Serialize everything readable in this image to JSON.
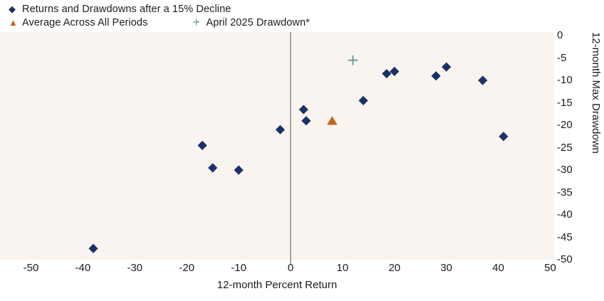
{
  "chart_data": {
    "type": "scatter",
    "title": "",
    "xlabel": "12-month Percent Return",
    "ylabel": "12-month Max Drawdown",
    "xlim": [
      -50,
      50
    ],
    "ylim": [
      -50,
      0
    ],
    "x_ticks": [
      -50,
      -40,
      -30,
      -20,
      -10,
      0,
      10,
      20,
      30,
      40,
      50
    ],
    "y_ticks": [
      0,
      -5,
      -10,
      -15,
      -20,
      -25,
      -30,
      -35,
      -40,
      -45,
      -50
    ],
    "grid": false,
    "zero_line_x": 0,
    "y_axis_side": "right",
    "legend_position": "top-left",
    "series": [
      {
        "name": "Returns and Drawdowns after a 15% Decline",
        "marker": "diamond",
        "color": "#1a3268",
        "points": [
          [
            -38,
            -47.5
          ],
          [
            -17,
            -24.5
          ],
          [
            -15,
            -29.5
          ],
          [
            -10,
            -30
          ],
          [
            -2,
            -21
          ],
          [
            2.5,
            -16.5
          ],
          [
            3,
            -19
          ],
          [
            14,
            -14.5
          ],
          [
            18.5,
            -8.5
          ],
          [
            20,
            -8
          ],
          [
            28,
            -9
          ],
          [
            30,
            -7
          ],
          [
            37,
            -10
          ],
          [
            41,
            -22.5
          ]
        ]
      },
      {
        "name": "Average Across All Periods",
        "marker": "triangle",
        "color": "#c2671d",
        "points": [
          [
            8,
            -19
          ]
        ]
      },
      {
        "name": "April 2025 Drawdown*",
        "marker": "plus",
        "color": "#5fa095",
        "points": [
          [
            12,
            -5.5
          ]
        ]
      }
    ],
    "colors": {
      "plot_bg": "#faf4f1",
      "page_bg": "#ffffff",
      "axis_text": "#1c1c1c",
      "zero_line": "#8a8a8a"
    }
  }
}
